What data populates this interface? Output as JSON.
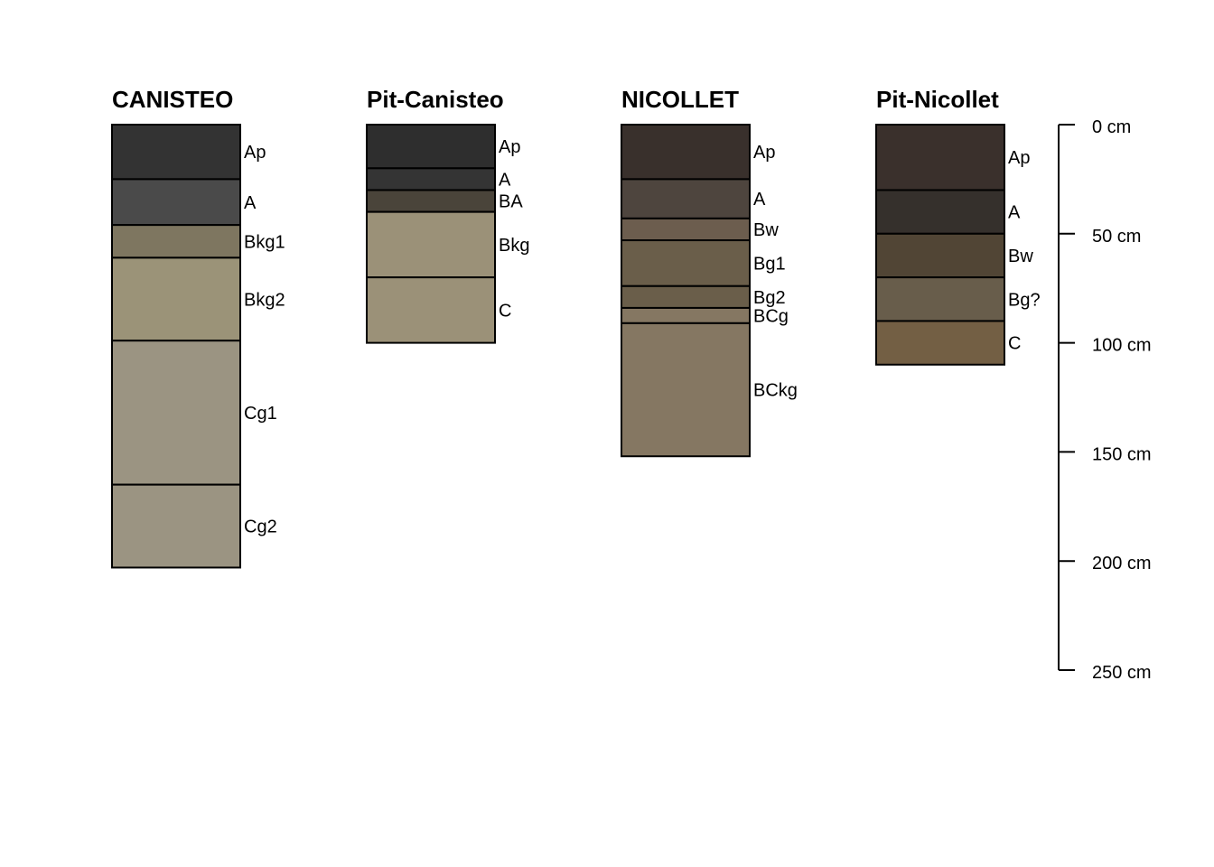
{
  "figure": {
    "depth_unit": "cm",
    "profiles": [
      {
        "name": "CANISTEO",
        "horizons": [
          {
            "name": "Ap",
            "top": 0,
            "bottom": 25,
            "color": "#333333"
          },
          {
            "name": "A",
            "top": 25,
            "bottom": 46,
            "color": "#4a4a4a"
          },
          {
            "name": "Bkg1",
            "top": 46,
            "bottom": 61,
            "color": "#7e7660"
          },
          {
            "name": "Bkg2",
            "top": 61,
            "bottom": 99,
            "color": "#9b9378"
          },
          {
            "name": "Cg1",
            "top": 99,
            "bottom": 165,
            "color": "#9b9482"
          },
          {
            "name": "Cg2",
            "top": 165,
            "bottom": 203,
            "color": "#9b9482"
          }
        ]
      },
      {
        "name": "Pit-Canisteo",
        "horizons": [
          {
            "name": "Ap",
            "top": 0,
            "bottom": 20,
            "color": "#2e2e2e"
          },
          {
            "name": "A",
            "top": 20,
            "bottom": 30,
            "color": "#343434"
          },
          {
            "name": "BA",
            "top": 30,
            "bottom": 40,
            "color": "#4a443a"
          },
          {
            "name": "Bkg",
            "top": 40,
            "bottom": 70,
            "color": "#9b9178"
          },
          {
            "name": "C",
            "top": 70,
            "bottom": 100,
            "color": "#9b9178"
          }
        ]
      },
      {
        "name": "NICOLLET",
        "horizons": [
          {
            "name": "Ap",
            "top": 0,
            "bottom": 25,
            "color": "#39302c"
          },
          {
            "name": "A",
            "top": 25,
            "bottom": 43,
            "color": "#4e453e"
          },
          {
            "name": "Bw",
            "top": 43,
            "bottom": 53,
            "color": "#6c5d4e"
          },
          {
            "name": "Bg1",
            "top": 53,
            "bottom": 74,
            "color": "#6a5e4a"
          },
          {
            "name": "Bg2",
            "top": 74,
            "bottom": 84,
            "color": "#6a5e4a"
          },
          {
            "name": "BCg",
            "top": 84,
            "bottom": 91,
            "color": "#857762"
          },
          {
            "name": "BCkg",
            "top": 91,
            "bottom": 152,
            "color": "#857762"
          }
        ]
      },
      {
        "name": "Pit-Nicollet",
        "horizons": [
          {
            "name": "Ap",
            "top": 0,
            "bottom": 30,
            "color": "#3a302c"
          },
          {
            "name": "A",
            "top": 30,
            "bottom": 50,
            "color": "#35302c"
          },
          {
            "name": "Bw",
            "top": 50,
            "bottom": 70,
            "color": "#514535"
          },
          {
            "name": "Bg?",
            "top": 70,
            "bottom": 90,
            "color": "#685d4b"
          },
          {
            "name": "C",
            "top": 90,
            "bottom": 110,
            "color": "#735f44"
          }
        ]
      }
    ],
    "depth_axis": {
      "ticks": [
        0,
        50,
        100,
        150,
        200,
        250
      ],
      "labels": [
        "0 cm",
        "50 cm",
        "100 cm",
        "150 cm",
        "200 cm",
        "250 cm"
      ]
    }
  }
}
